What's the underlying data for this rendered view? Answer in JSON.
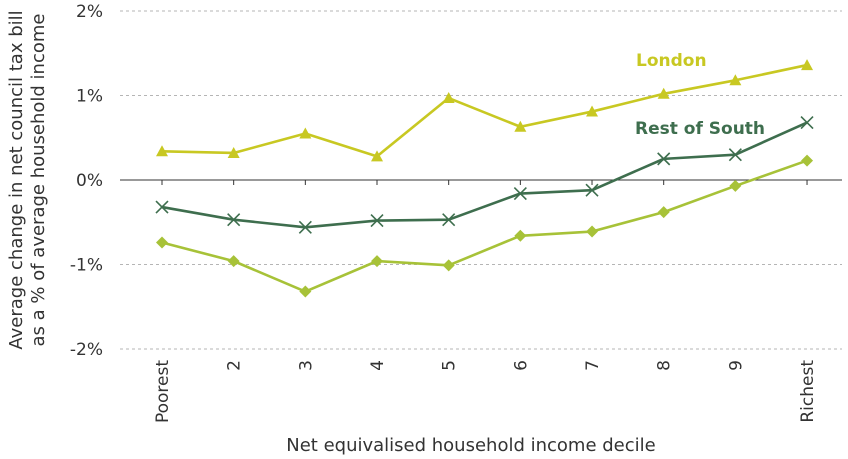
{
  "chart_data": {
    "type": "line",
    "title": "",
    "xlabel": "Net equivalised household income decile",
    "ylabel": "Average change in net council tax bill as a % of average household income",
    "ylabel_lines": [
      "Average change in net council tax bill",
      "as a % of average household income"
    ],
    "categories": [
      "Poorest",
      "2",
      "3",
      "4",
      "5",
      "6",
      "7",
      "8",
      "9",
      "Richest"
    ],
    "yticks": [
      2,
      1,
      0,
      -1,
      -2
    ],
    "ytick_labels": [
      "2%",
      "1%",
      "0%",
      "-1%",
      "-2%"
    ],
    "ylim": [
      -2,
      2
    ],
    "grid": true,
    "series": [
      {
        "name": "London",
        "marker": "triangle",
        "color": "#c8c822",
        "label": "London",
        "values": [
          0.34,
          0.32,
          0.55,
          0.28,
          0.97,
          0.63,
          0.81,
          1.02,
          1.18,
          1.36
        ]
      },
      {
        "name": "Rest of South",
        "marker": "cross",
        "color": "#3e6e4e",
        "label": "Rest of South",
        "values": [
          -0.32,
          -0.47,
          -0.56,
          -0.48,
          -0.47,
          -0.16,
          -0.12,
          0.25,
          0.3,
          0.68
        ]
      },
      {
        "name": "",
        "marker": "diamond",
        "color": "#a7c238",
        "label": "",
        "values": [
          -0.74,
          -0.96,
          -1.32,
          -0.96,
          -1.01,
          -0.66,
          -0.61,
          -0.38,
          -0.07,
          0.23
        ]
      }
    ]
  }
}
